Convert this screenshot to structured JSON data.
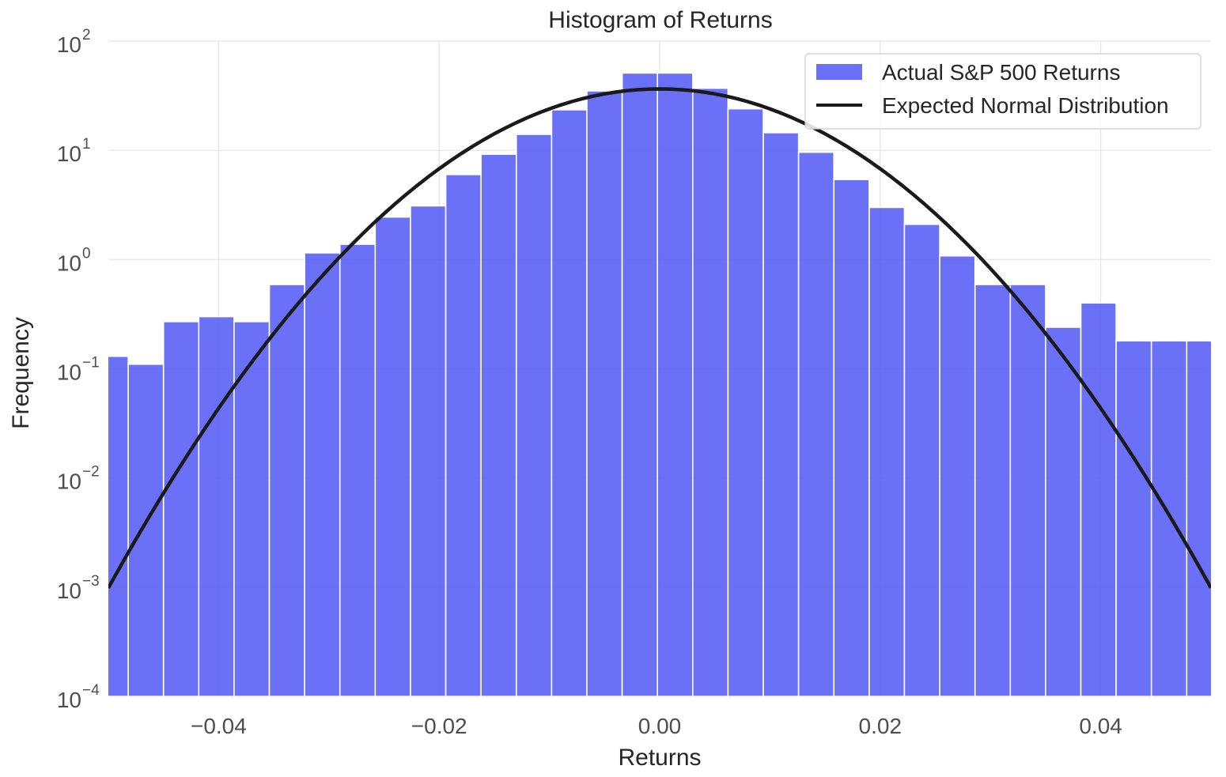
{
  "chart_data": {
    "type": "bar",
    "title": "Histogram of Returns",
    "xlabel": "Returns",
    "ylabel": "Frequency",
    "xlim": [
      -0.05,
      0.05
    ],
    "ylim": [
      0.0001,
      100
    ],
    "y_scale": "log",
    "grid": true,
    "legend_position": "top-right",
    "x_ticks": [
      {
        "value": -0.04,
        "label": "−0.04"
      },
      {
        "value": -0.02,
        "label": "−0.02"
      },
      {
        "value": 0.0,
        "label": "0.00"
      },
      {
        "value": 0.02,
        "label": "0.02"
      },
      {
        "value": 0.04,
        "label": "0.04"
      }
    ],
    "y_ticks": [
      {
        "value": 100,
        "base": "10",
        "exp": "2"
      },
      {
        "value": 10,
        "base": "10",
        "exp": "1"
      },
      {
        "value": 1,
        "base": "10",
        "exp": "0"
      },
      {
        "value": 0.1,
        "base": "10",
        "exp": "−1"
      },
      {
        "value": 0.01,
        "base": "10",
        "exp": "−2"
      },
      {
        "value": 0.001,
        "base": "10",
        "exp": "−3"
      },
      {
        "value": 0.0001,
        "base": "10",
        "exp": "−4"
      }
    ],
    "histogram": {
      "name": "Actual S&P 500 Returns",
      "color": "#5a62f6",
      "bins": [
        {
          "x0": -0.053,
          "x1": -0.0482,
          "y": 0.13
        },
        {
          "x0": -0.0482,
          "x1": -0.045,
          "y": 0.11
        },
        {
          "x0": -0.045,
          "x1": -0.0418,
          "y": 0.27
        },
        {
          "x0": -0.0418,
          "x1": -0.0386,
          "y": 0.3
        },
        {
          "x0": -0.0386,
          "x1": -0.0354,
          "y": 0.27
        },
        {
          "x0": -0.0354,
          "x1": -0.0322,
          "y": 0.59
        },
        {
          "x0": -0.0322,
          "x1": -0.029,
          "y": 1.15
        },
        {
          "x0": -0.029,
          "x1": -0.0258,
          "y": 1.38
        },
        {
          "x0": -0.0258,
          "x1": -0.0226,
          "y": 2.45
        },
        {
          "x0": -0.0226,
          "x1": -0.0194,
          "y": 3.1
        },
        {
          "x0": -0.0194,
          "x1": -0.0162,
          "y": 6.0
        },
        {
          "x0": -0.0162,
          "x1": -0.013,
          "y": 9.2
        },
        {
          "x0": -0.013,
          "x1": -0.0098,
          "y": 14.0
        },
        {
          "x0": -0.0098,
          "x1": -0.0066,
          "y": 23.5
        },
        {
          "x0": -0.0066,
          "x1": -0.0034,
          "y": 35.0
        },
        {
          "x0": -0.0034,
          "x1": -0.0002,
          "y": 51.0
        },
        {
          "x0": -0.0002,
          "x1": 0.003,
          "y": 51.0
        },
        {
          "x0": 0.003,
          "x1": 0.0062,
          "y": 37.0
        },
        {
          "x0": 0.0062,
          "x1": 0.0094,
          "y": 24.0
        },
        {
          "x0": 0.0094,
          "x1": 0.0126,
          "y": 14.5
        },
        {
          "x0": 0.0126,
          "x1": 0.0158,
          "y": 9.6
        },
        {
          "x0": 0.0158,
          "x1": 0.019,
          "y": 5.4
        },
        {
          "x0": 0.019,
          "x1": 0.0222,
          "y": 3.0
        },
        {
          "x0": 0.0222,
          "x1": 0.0254,
          "y": 2.1
        },
        {
          "x0": 0.0254,
          "x1": 0.0286,
          "y": 1.08
        },
        {
          "x0": 0.0286,
          "x1": 0.0318,
          "y": 0.59
        },
        {
          "x0": 0.0318,
          "x1": 0.035,
          "y": 0.59
        },
        {
          "x0": 0.035,
          "x1": 0.0382,
          "y": 0.24
        },
        {
          "x0": 0.0382,
          "x1": 0.0414,
          "y": 0.4
        },
        {
          "x0": 0.0414,
          "x1": 0.0446,
          "y": 0.18
        },
        {
          "x0": 0.0446,
          "x1": 0.0478,
          "y": 0.18
        },
        {
          "x0": 0.0478,
          "x1": 0.051,
          "y": 0.18
        }
      ]
    },
    "normal_curve": {
      "name": "Expected Normal Distribution",
      "color": "#1a1a1a",
      "mean": 0.0,
      "std": 0.0109,
      "peak": 36.5,
      "points": 101
    }
  }
}
